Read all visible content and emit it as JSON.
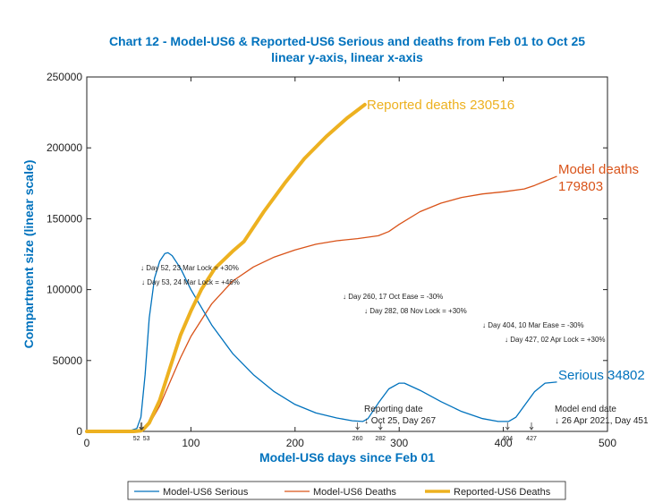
{
  "chart_data": {
    "type": "line",
    "title": "Chart 12 - Model-US6 & Reported-US6 Serious and deaths from Feb 01 to Oct 25",
    "subtitle": "linear y-axis, linear x-axis",
    "xlabel": "Model-US6 days since Feb 01",
    "ylabel": "Compartment size (linear scale)",
    "xlim": [
      0,
      500
    ],
    "ylim": [
      0,
      250000
    ],
    "xticks": [
      "0",
      "100",
      "200",
      "300",
      "400",
      "500"
    ],
    "yticks": [
      "0",
      "50000",
      "100000",
      "150000",
      "200000",
      "250000"
    ],
    "grid": false,
    "legend_placement": "bottom-outside",
    "series": [
      {
        "name": "Model-US6 Serious",
        "color": "#0072BD",
        "x": [
          0,
          40,
          48,
          52,
          56,
          60,
          65,
          70,
          75,
          78,
          82,
          90,
          100,
          120,
          140,
          160,
          180,
          200,
          220,
          240,
          255,
          265,
          270,
          280,
          290,
          300,
          305,
          320,
          340,
          360,
          380,
          395,
          405,
          412,
          420,
          430,
          440,
          451
        ],
        "y": [
          0,
          200,
          2000,
          10000,
          40000,
          80000,
          108000,
          120000,
          125500,
          126000,
          124000,
          115000,
          100000,
          75000,
          55000,
          40000,
          28000,
          19000,
          13000,
          9500,
          7500,
          7000,
          9000,
          20000,
          30000,
          34000,
          34000,
          29000,
          21000,
          14000,
          9000,
          7000,
          7000,
          10000,
          18000,
          28000,
          34000,
          34802
        ]
      },
      {
        "name": "Model-US6 Deaths",
        "color": "#D95319",
        "x": [
          0,
          45,
          52,
          56,
          60,
          70,
          80,
          90,
          100,
          120,
          140,
          160,
          180,
          200,
          220,
          240,
          260,
          280,
          290,
          300,
          320,
          340,
          360,
          380,
          400,
          420,
          430,
          440,
          451
        ],
        "y": [
          0,
          0,
          500,
          2000,
          5000,
          18000,
          35000,
          52000,
          67000,
          90000,
          106000,
          116000,
          123000,
          128000,
          132000,
          134500,
          136000,
          138000,
          141000,
          146000,
          155000,
          161000,
          165000,
          167500,
          169000,
          171000,
          173500,
          176500,
          179803
        ]
      },
      {
        "name": "Reported-US6 Deaths",
        "color": "#EDB120",
        "x": [
          0,
          45,
          52,
          55,
          60,
          70,
          80,
          90,
          100,
          110,
          123,
          140,
          151,
          170,
          190,
          209,
          230,
          250,
          267
        ],
        "y": [
          0,
          0,
          500,
          2000,
          6000,
          22000,
          45000,
          68000,
          85000,
          100000,
          115000,
          127000,
          134000,
          155000,
          175000,
          192500,
          208000,
          221000,
          230516
        ]
      }
    ],
    "end_labels": {
      "reported_deaths": "Reported deaths 230516",
      "model_deaths_1": "Model deaths",
      "model_deaths_2": "179803",
      "serious": "Serious 34802"
    },
    "annotations": [
      "↓ Day 52, 23 Mar Lock = +30%",
      "↓ Day 53, 24 Mar Lock = +46%",
      "↓ Day 260, 17 Oct Ease = -30%",
      "↓ Day 282, 08 Nov Lock = +30%",
      "↓ Day 404, 10 Mar Ease = -30%",
      "↓ Day 427, 02 Apr Lock = +30%"
    ],
    "reporting_date": {
      "line1": "Reporting date",
      "line2": "↓ Oct 25, Day 267"
    },
    "model_end_date": {
      "line1": "Model end date",
      "line2": "↓ 26 Apr 2021, Day 451"
    },
    "axis_markers": [
      {
        "day": 52,
        "label": "52"
      },
      {
        "day": 53,
        "label": "53"
      },
      {
        "day": 260,
        "label": "260"
      },
      {
        "day": 282,
        "label": "282"
      },
      {
        "day": 404,
        "label": "404"
      },
      {
        "day": 427,
        "label": "427"
      }
    ]
  }
}
